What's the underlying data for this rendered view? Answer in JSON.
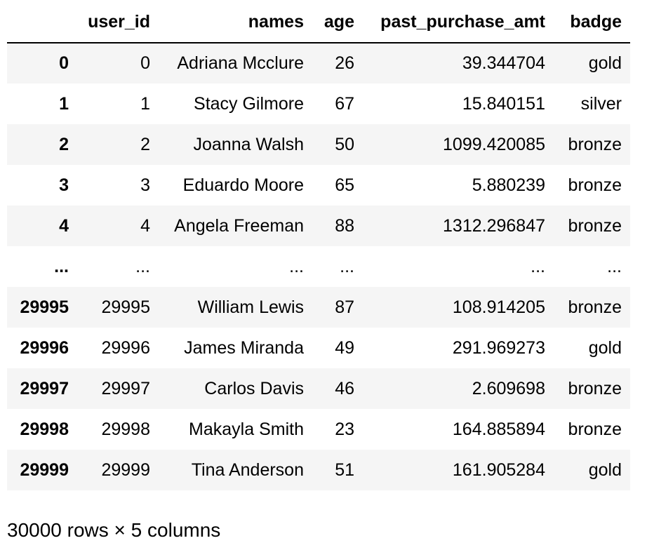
{
  "table": {
    "headers": {
      "index": "",
      "user_id": "user_id",
      "names": "names",
      "age": "age",
      "past_purchase_amt": "past_purchase_amt",
      "badge": "badge"
    },
    "rows": [
      {
        "index": "0",
        "user_id": "0",
        "names": "Adriana Mcclure",
        "age": "26",
        "past_purchase_amt": "39.344704",
        "badge": "gold"
      },
      {
        "index": "1",
        "user_id": "1",
        "names": "Stacy Gilmore",
        "age": "67",
        "past_purchase_amt": "15.840151",
        "badge": "silver"
      },
      {
        "index": "2",
        "user_id": "2",
        "names": "Joanna Walsh",
        "age": "50",
        "past_purchase_amt": "1099.420085",
        "badge": "bronze"
      },
      {
        "index": "3",
        "user_id": "3",
        "names": "Eduardo Moore",
        "age": "65",
        "past_purchase_amt": "5.880239",
        "badge": "bronze"
      },
      {
        "index": "4",
        "user_id": "4",
        "names": "Angela Freeman",
        "age": "88",
        "past_purchase_amt": "1312.296847",
        "badge": "bronze"
      },
      {
        "index": "...",
        "user_id": "...",
        "names": "...",
        "age": "...",
        "past_purchase_amt": "...",
        "badge": "..."
      },
      {
        "index": "29995",
        "user_id": "29995",
        "names": "William Lewis",
        "age": "87",
        "past_purchase_amt": "108.914205",
        "badge": "bronze"
      },
      {
        "index": "29996",
        "user_id": "29996",
        "names": "James Miranda",
        "age": "49",
        "past_purchase_amt": "291.969273",
        "badge": "gold"
      },
      {
        "index": "29997",
        "user_id": "29997",
        "names": "Carlos Davis",
        "age": "46",
        "past_purchase_amt": "2.609698",
        "badge": "bronze"
      },
      {
        "index": "29998",
        "user_id": "29998",
        "names": "Makayla Smith",
        "age": "23",
        "past_purchase_amt": "164.885894",
        "badge": "bronze"
      },
      {
        "index": "29999",
        "user_id": "29999",
        "names": "Tina Anderson",
        "age": "51",
        "past_purchase_amt": "161.905284",
        "badge": "gold"
      }
    ]
  },
  "footer": {
    "shape_text": "30000 rows × 5 columns"
  }
}
